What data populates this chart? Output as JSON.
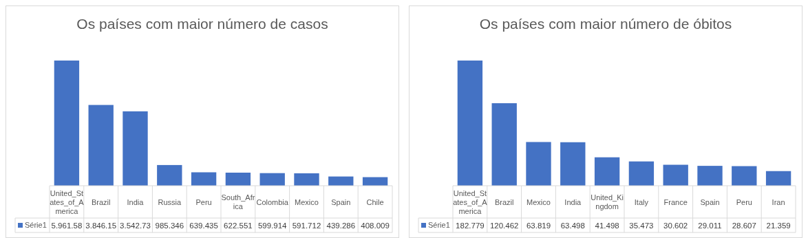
{
  "chart_data": [
    {
      "type": "bar",
      "title": "Os países com maior número de casos",
      "categories": [
        "United_States_of_America",
        "Brazil",
        "India",
        "Russia",
        "Peru",
        "South_Africa",
        "Colombia",
        "Mexico",
        "Spain",
        "Chile"
      ],
      "legend": "bottom",
      "series": [
        {
          "name": "Série1",
          "color": "#4472c4",
          "values": [
            5961580,
            3846150,
            3542730,
            985346,
            639435,
            622551,
            599914,
            591712,
            439286,
            408009
          ],
          "value_labels": [
            "5.961.58",
            "3.846.15",
            "3.542.73",
            "985.346",
            "639.435",
            "622.551",
            "599.914",
            "591.712",
            "439.286",
            "408.009"
          ]
        }
      ]
    },
    {
      "type": "bar",
      "title": "Os países com maior número de óbitos",
      "categories": [
        "United_States_of_America",
        "Brazil",
        "Mexico",
        "India",
        "United_Kingdom",
        "Italy",
        "France",
        "Spain",
        "Peru",
        "Iran"
      ],
      "legend": "bottom",
      "series": [
        {
          "name": "Série1",
          "color": "#4472c4",
          "values": [
            182779,
            120462,
            63819,
            63498,
            41498,
            35473,
            30602,
            29011,
            28607,
            21359
          ],
          "value_labels": [
            "182.779",
            "120.462",
            "63.819",
            "63.498",
            "41.498",
            "35.473",
            "30.602",
            "29.011",
            "28.607",
            "21.359"
          ]
        }
      ]
    }
  ]
}
